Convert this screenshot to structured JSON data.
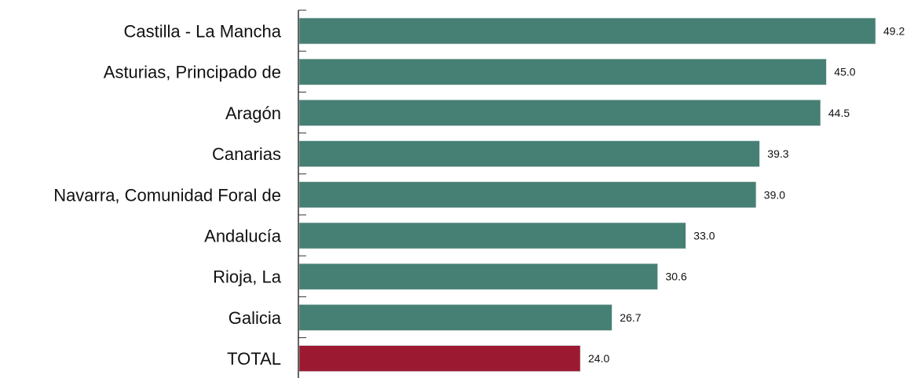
{
  "chart_data": {
    "type": "bar",
    "orientation": "horizontal",
    "categories": [
      "Castilla - La Mancha",
      "Asturias, Principado de",
      "Aragón",
      "Canarias",
      "Navarra, Comunidad Foral de",
      "Andalucía",
      "Rioja, La",
      "Galicia",
      "TOTAL"
    ],
    "values": [
      49.2,
      45.0,
      44.5,
      39.3,
      39.0,
      33.0,
      30.6,
      26.7,
      24.0
    ],
    "value_labels": [
      "49.2",
      "45.0",
      "44.5",
      "39.3",
      "39.0",
      "33.0",
      "30.6",
      "26.7",
      "24.0"
    ],
    "highlight": [
      false,
      false,
      false,
      false,
      false,
      false,
      false,
      false,
      true
    ],
    "title": "",
    "xlabel": "",
    "ylabel": "",
    "xlim": [
      0,
      49.2
    ],
    "grid": false,
    "legend": "none",
    "colors": {
      "bar": "#467f74",
      "highlight": "#9b1a32",
      "axis": "#333333",
      "text": "#111111"
    }
  }
}
